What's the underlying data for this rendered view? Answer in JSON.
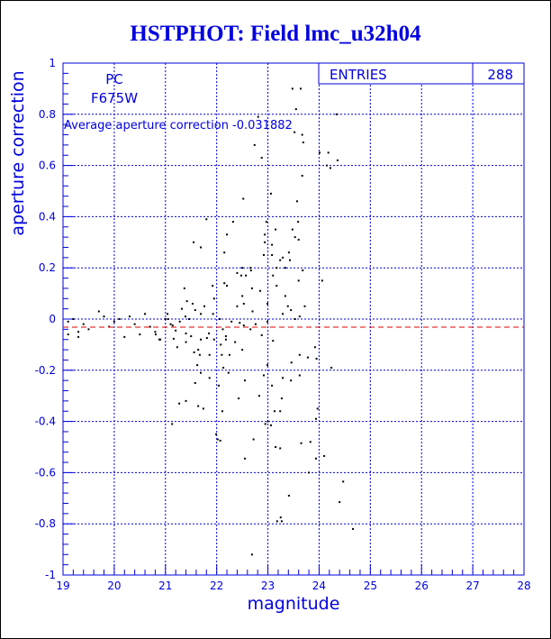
{
  "chart_data": {
    "type": "scatter",
    "title": "HSTPHOT: Field lmc_u32h04",
    "xlabel": "magnitude",
    "ylabel": "aperture correction",
    "xlim": [
      19,
      28
    ],
    "ylim": [
      -1,
      1
    ],
    "xticks": [
      "19",
      "20",
      "21",
      "22",
      "23",
      "24",
      "25",
      "26",
      "27",
      "28"
    ],
    "yticks": [
      "-1",
      "-0.8",
      "-0.6",
      "-0.4",
      "-0.2",
      "0",
      "0.2",
      "0.4",
      "0.6",
      "0.8",
      "1"
    ],
    "grid": true,
    "annotations": {
      "camera": "PC",
      "filter": "F675W",
      "average_label": "Average aperture correction -0.031882"
    },
    "average_line": -0.031882,
    "stats": {
      "label": "ENTRIES",
      "value": "288"
    },
    "colors": {
      "axis": "#0000e0",
      "grid": "#0000e0",
      "points": "#000000",
      "average_line": "#e00000"
    },
    "points": [
      [
        19.1,
        -0.01
      ],
      [
        19.2,
        0.0
      ],
      [
        19.3,
        -0.05
      ],
      [
        19.1,
        -0.06
      ],
      [
        19.4,
        -0.02
      ],
      [
        19.5,
        -0.04
      ],
      [
        19.7,
        0.03
      ],
      [
        19.8,
        0.01
      ],
      [
        19.9,
        -0.03
      ],
      [
        20.1,
        0.0
      ],
      [
        20.2,
        -0.07
      ],
      [
        20.3,
        0.01
      ],
      [
        20.4,
        -0.02
      ],
      [
        20.5,
        -0.06
      ],
      [
        20.6,
        0.02
      ],
      [
        20.7,
        -0.03
      ],
      [
        20.8,
        -0.05
      ],
      [
        20.9,
        -0.08
      ],
      [
        21.0,
        0.0
      ],
      [
        21.1,
        -0.02
      ],
      [
        19.3,
        -0.07
      ],
      [
        20.0,
        -0.01
      ],
      [
        21.55,
        0.3
      ],
      [
        21.69,
        0.28
      ],
      [
        21.8,
        0.39
      ],
      [
        22.32,
        0.38
      ],
      [
        22.2,
        0.33
      ],
      [
        22.15,
        0.26
      ],
      [
        22.5,
        0.2
      ],
      [
        22.4,
        0.18
      ],
      [
        22.66,
        0.2
      ],
      [
        22.15,
        0.14
      ],
      [
        22.2,
        0.13
      ],
      [
        22.5,
        0.09
      ],
      [
        22.53,
        0.06
      ],
      [
        22.4,
        0.05
      ],
      [
        22.85,
        0.11
      ],
      [
        22.7,
        0.03
      ],
      [
        22.99,
        0.06
      ],
      [
        21.37,
        0.12
      ],
      [
        21.92,
        0.13
      ],
      [
        21.95,
        0.08
      ],
      [
        21.42,
        0.07
      ],
      [
        21.53,
        0.06
      ],
      [
        21.32,
        0.04
      ],
      [
        21.76,
        0.05
      ],
      [
        21.58,
        0.035
      ],
      [
        21.69,
        0.02
      ],
      [
        21.93,
        0.02
      ],
      [
        21.39,
        0.01
      ],
      [
        21.04,
        0.02
      ],
      [
        21.46,
        0.0
      ],
      [
        21.28,
        -0.01
      ],
      [
        21.05,
        0.0
      ],
      [
        21.14,
        -0.025
      ],
      [
        21.2,
        -0.045
      ],
      [
        20.88,
        -0.08
      ],
      [
        20.81,
        -0.06
      ],
      [
        21.4,
        -0.056
      ],
      [
        21.5,
        -0.067
      ],
      [
        21.69,
        -0.08
      ],
      [
        21.81,
        -0.074
      ],
      [
        21.16,
        -0.077
      ],
      [
        21.23,
        -0.11
      ],
      [
        21.4,
        -0.09
      ],
      [
        21.85,
        -0.056
      ],
      [
        21.95,
        -0.08
      ],
      [
        22.06,
        0.0
      ],
      [
        22.12,
        -0.04
      ],
      [
        22.18,
        -0.067
      ],
      [
        22.08,
        -0.1
      ],
      [
        22.18,
        -0.08
      ],
      [
        22.29,
        -0.01
      ],
      [
        22.45,
        -0.015
      ],
      [
        22.53,
        -0.025
      ],
      [
        22.36,
        -0.09
      ],
      [
        22.5,
        -0.12
      ],
      [
        21.64,
        -0.12
      ],
      [
        21.56,
        -0.13
      ],
      [
        21.67,
        -0.14
      ],
      [
        21.86,
        -0.14
      ],
      [
        22.1,
        -0.14
      ],
      [
        22.25,
        -0.14
      ],
      [
        21.62,
        -0.18
      ],
      [
        21.69,
        -0.21
      ],
      [
        21.86,
        -0.23
      ],
      [
        21.58,
        -0.25
      ],
      [
        22.13,
        -0.19
      ],
      [
        22.23,
        -0.21
      ],
      [
        22.55,
        -0.24
      ],
      [
        22.66,
        -0.04
      ],
      [
        22.76,
        -0.02
      ],
      [
        22.88,
        -0.063
      ],
      [
        23.1,
        -0.085
      ],
      [
        22.99,
        -0.18
      ],
      [
        22.92,
        -0.22
      ],
      [
        23.08,
        -0.26
      ],
      [
        23.29,
        -0.23
      ],
      [
        23.45,
        -0.24
      ],
      [
        23.62,
        -0.22
      ],
      [
        23.92,
        -0.11
      ],
      [
        23.62,
        -0.14
      ],
      [
        23.78,
        -0.15
      ],
      [
        23.95,
        -0.155
      ],
      [
        24.24,
        -0.19
      ],
      [
        23.46,
        -0.17
      ],
      [
        23.53,
        0.0
      ],
      [
        23.62,
        0.01
      ],
      [
        23.72,
        0.05
      ],
      [
        23.39,
        0.05
      ],
      [
        23.29,
        0.02
      ],
      [
        23.45,
        0.035
      ],
      [
        23.17,
        0.13
      ],
      [
        23.34,
        0.09
      ],
      [
        23.6,
        0.15
      ],
      [
        23.68,
        0.19
      ],
      [
        23.34,
        0.2
      ],
      [
        23.17,
        0.2
      ],
      [
        23.1,
        0.17
      ],
      [
        23.08,
        0.25
      ],
      [
        23.24,
        0.23
      ],
      [
        23.29,
        0.24
      ],
      [
        23.43,
        0.23
      ],
      [
        23.41,
        0.26
      ],
      [
        23.08,
        0.29
      ],
      [
        22.94,
        0.3
      ],
      [
        22.94,
        0.33
      ],
      [
        22.97,
        0.38
      ],
      [
        23.15,
        0.35
      ],
      [
        23.48,
        0.35
      ],
      [
        23.53,
        0.32
      ],
      [
        23.6,
        0.31
      ],
      [
        23.59,
        0.38
      ],
      [
        22.92,
        0.25
      ],
      [
        22.67,
        0.19
      ],
      [
        22.57,
        0.17
      ],
      [
        22.48,
        0.17
      ],
      [
        22.69,
        0.12
      ],
      [
        24.06,
        0.15
      ],
      [
        22.99,
        -0.01
      ],
      [
        23.48,
        0.9
      ],
      [
        23.64,
        0.9
      ],
      [
        23.55,
        0.82
      ],
      [
        24.34,
        0.8
      ],
      [
        22.81,
        0.79
      ],
      [
        23.52,
        0.73
      ],
      [
        23.67,
        0.72
      ],
      [
        23.69,
        0.69
      ],
      [
        22.74,
        0.68
      ],
      [
        22.88,
        0.63
      ],
      [
        24.01,
        0.65
      ],
      [
        24.18,
        0.65
      ],
      [
        24.36,
        0.62
      ],
      [
        24.15,
        0.6
      ],
      [
        24.22,
        0.59
      ],
      [
        23.67,
        0.56
      ],
      [
        23.06,
        0.49
      ],
      [
        22.52,
        0.47
      ],
      [
        23.57,
        0.46
      ],
      [
        22.04,
        -0.26
      ],
      [
        21.4,
        -0.32
      ],
      [
        21.27,
        -0.33
      ],
      [
        21.64,
        -0.34
      ],
      [
        21.74,
        -0.35
      ],
      [
        22.11,
        -0.36
      ],
      [
        22.43,
        -0.31
      ],
      [
        22.83,
        -0.3
      ],
      [
        23.27,
        -0.31
      ],
      [
        23.13,
        -0.36
      ],
      [
        23.24,
        -0.36
      ],
      [
        23.97,
        -0.35
      ],
      [
        23.94,
        -0.39
      ],
      [
        21.13,
        -0.41
      ],
      [
        23.0,
        -0.4
      ],
      [
        22.95,
        -0.41
      ],
      [
        23.06,
        -0.415
      ],
      [
        21.99,
        -0.45
      ],
      [
        22.02,
        -0.47
      ],
      [
        22.07,
        -0.475
      ],
      [
        22.72,
        -0.47
      ],
      [
        23.15,
        -0.5
      ],
      [
        23.24,
        -0.505
      ],
      [
        23.65,
        -0.485
      ],
      [
        23.83,
        -0.48
      ],
      [
        22.55,
        -0.545
      ],
      [
        23.94,
        -0.545
      ],
      [
        24.1,
        -0.535
      ],
      [
        23.8,
        -0.6
      ],
      [
        24.47,
        -0.635
      ],
      [
        23.41,
        -0.69
      ],
      [
        24.4,
        -0.715
      ],
      [
        23.25,
        -0.775
      ],
      [
        23.18,
        -0.79
      ],
      [
        23.27,
        -0.79
      ],
      [
        24.66,
        -0.82
      ],
      [
        22.69,
        -0.92
      ]
    ]
  }
}
